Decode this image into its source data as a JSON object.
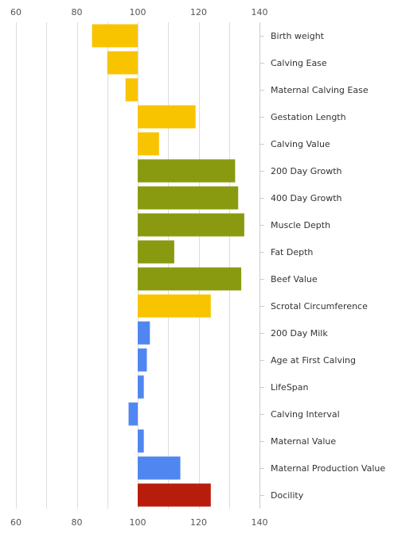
{
  "chart_data": {
    "type": "bar",
    "orientation": "horizontal",
    "baseline": 100,
    "xlim": [
      60,
      140
    ],
    "x_ticks": [
      60,
      80,
      100,
      120,
      140
    ],
    "grid": true,
    "categories": [
      "Birth weight",
      "Calving Ease",
      "Maternal Calving Ease",
      "Gestation Length",
      "Calving Value",
      "200 Day Growth",
      "400 Day Growth",
      "Muscle Depth",
      "Fat Depth",
      "Beef Value",
      "Scrotal Circumference",
      "200 Day Milk",
      "Age at First Calving",
      "LifeSpan",
      "Calving Interval",
      "Maternal Value",
      "Maternal Production Value",
      "Docility"
    ],
    "values": [
      85,
      90,
      96,
      119,
      107,
      132,
      133,
      135,
      112,
      134,
      124,
      104,
      103,
      102,
      97,
      102,
      114,
      124
    ],
    "colors": [
      "#f8c400",
      "#f8c400",
      "#f8c400",
      "#f8c400",
      "#f8c400",
      "#8a9a10",
      "#8a9a10",
      "#8a9a10",
      "#8a9a10",
      "#8a9a10",
      "#f8c400",
      "#4f86f0",
      "#4f86f0",
      "#4f86f0",
      "#4f86f0",
      "#4f86f0",
      "#4f86f0",
      "#b81c0c"
    ]
  }
}
